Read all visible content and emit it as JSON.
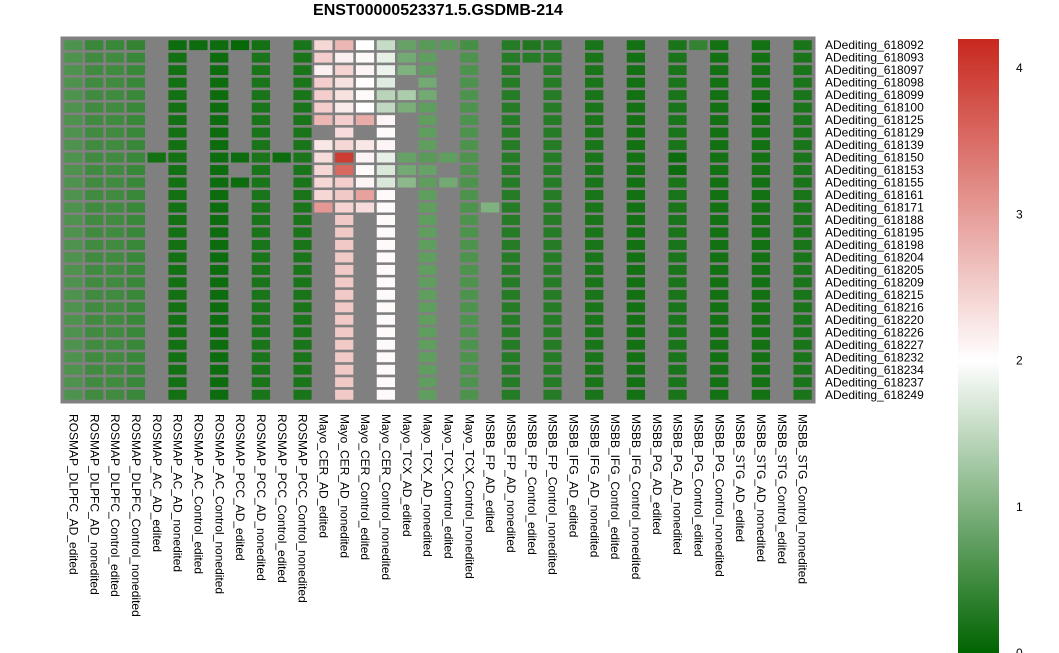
{
  "chart_data": {
    "type": "heatmap",
    "title": "ENST00000523371.5.GSDMB-214",
    "rows": [
      "ADediting_618092",
      "ADediting_618093",
      "ADediting_618097",
      "ADediting_618098",
      "ADediting_618099",
      "ADediting_618100",
      "ADediting_618125",
      "ADediting_618129",
      "ADediting_618139",
      "ADediting_618150",
      "ADediting_618153",
      "ADediting_618155",
      "ADediting_618161",
      "ADediting_618171",
      "ADediting_618188",
      "ADediting_618195",
      "ADediting_618198",
      "ADediting_618204",
      "ADediting_618205",
      "ADediting_618209",
      "ADediting_618215",
      "ADediting_618216",
      "ADediting_618220",
      "ADediting_618226",
      "ADediting_618227",
      "ADediting_618232",
      "ADediting_618234",
      "ADediting_618237",
      "ADediting_618249"
    ],
    "columns": [
      "ROSMAP_DLPFC_AD_edited",
      "ROSMAP_DLPFC_AD_nonedited",
      "ROSMAP_DLPFC_Control_edited",
      "ROSMAP_DLPFC_Control_nonedited",
      "ROSMAP_AC_AD_edited",
      "ROSMAP_AC_AD_nonedited",
      "ROSMAP_AC_Control_edited",
      "ROSMAP_AC_Control_nonedited",
      "ROSMAP_PCC_AD_edited",
      "ROSMAP_PCC_AD_nonedited",
      "ROSMAP_PCC_Control_edited",
      "ROSMAP_PCC_Control_nonedited",
      "Mayo_CER_AD_edited",
      "Mayo_CER_AD_nonedited",
      "Mayo_CER_Control_edited",
      "Mayo_CER_Control_nonedited",
      "Mayo_TCX_AD_edited",
      "Mayo_TCX_AD_nonedited",
      "Mayo_TCX_Control_edited",
      "Mayo_TCX_Control_nonedited",
      "MSBB_FP_AD_edited",
      "MSBB_FP_AD_nonedited",
      "MSBB_FP_Control_edited",
      "MSBB_FP_Control_nonedited",
      "MSBB_IFG_AD_edited",
      "MSBB_IFG_AD_nonedited",
      "MSBB_IFG_Control_edited",
      "MSBB_IFG_Control_nonedited",
      "MSBB_PG_AD_edited",
      "MSBB_PG_AD_nonedited",
      "MSBB_PG_Control_edited",
      "MSBB_PG_Control_nonedited",
      "MSBB_STG_AD_edited",
      "MSBB_STG_AD_nonedited",
      "MSBB_STG_Control_edited",
      "MSBB_STG_Control_nonedited"
    ],
    "column_base_values": [
      0.6,
      0.5,
      0.5,
      0.45,
      null,
      0.15,
      null,
      0.1,
      null,
      0.2,
      null,
      0.2,
      null,
      2.55,
      null,
      2.05,
      null,
      0.75,
      null,
      0.6,
      null,
      0.3,
      null,
      0.3,
      null,
      0.2,
      null,
      0.15,
      null,
      0.2,
      null,
      0.15,
      null,
      0.15,
      null,
      0.2
    ],
    "overrides": [
      [
        0,
        1,
        0.45
      ],
      [
        0,
        2,
        0.45
      ],
      [
        0,
        3,
        0.4
      ],
      [
        0,
        5,
        0.1
      ],
      [
        0,
        6,
        0.1
      ],
      [
        0,
        7,
        0.1
      ],
      [
        0,
        8,
        0.05
      ],
      [
        0,
        9,
        0.15
      ],
      [
        0,
        12,
        2.4
      ],
      [
        0,
        13,
        2.75
      ],
      [
        0,
        14,
        2.0
      ],
      [
        0,
        15,
        1.55
      ],
      [
        0,
        16,
        0.8
      ],
      [
        0,
        17,
        0.7
      ],
      [
        0,
        18,
        0.7
      ],
      [
        0,
        19,
        0.55
      ],
      [
        0,
        21,
        0.3
      ],
      [
        0,
        22,
        0.25
      ],
      [
        0,
        30,
        0.4
      ],
      [
        1,
        12,
        2.5
      ],
      [
        1,
        13,
        2.15
      ],
      [
        1,
        14,
        2.05
      ],
      [
        1,
        15,
        1.8
      ],
      [
        1,
        16,
        0.9
      ],
      [
        1,
        22,
        0.3
      ],
      [
        2,
        12,
        2.15
      ],
      [
        2,
        13,
        2.45
      ],
      [
        2,
        14,
        2.1
      ],
      [
        2,
        15,
        1.85
      ],
      [
        2,
        16,
        1.0
      ],
      [
        3,
        7,
        0.1
      ],
      [
        3,
        12,
        2.5
      ],
      [
        3,
        13,
        2.3
      ],
      [
        3,
        14,
        2.0
      ],
      [
        3,
        15,
        1.75
      ],
      [
        3,
        17,
        0.9
      ],
      [
        4,
        12,
        2.5
      ],
      [
        4,
        13,
        2.3
      ],
      [
        4,
        14,
        2.05
      ],
      [
        4,
        15,
        1.45
      ],
      [
        4,
        16,
        1.35
      ],
      [
        4,
        17,
        0.9
      ],
      [
        5,
        12,
        2.5
      ],
      [
        5,
        13,
        2.2
      ],
      [
        5,
        14,
        2.0
      ],
      [
        5,
        15,
        1.5
      ],
      [
        5,
        16,
        0.95
      ],
      [
        5,
        33,
        0.05
      ],
      [
        6,
        12,
        2.75
      ],
      [
        6,
        13,
        2.5
      ],
      [
        6,
        14,
        2.85
      ],
      [
        6,
        15,
        2.1
      ],
      [
        7,
        12,
        null
      ],
      [
        7,
        13,
        2.35
      ],
      [
        7,
        14,
        null
      ],
      [
        7,
        15,
        2.05
      ],
      [
        8,
        12,
        2.25
      ],
      [
        8,
        13,
        2.4
      ],
      [
        8,
        14,
        2.25
      ],
      [
        8,
        15,
        2.1
      ],
      [
        9,
        4,
        0.15
      ],
      [
        9,
        8,
        0.1
      ],
      [
        9,
        10,
        0.1
      ],
      [
        9,
        12,
        2.35
      ],
      [
        9,
        13,
        4.0
      ],
      [
        9,
        14,
        2.1
      ],
      [
        9,
        15,
        1.8
      ],
      [
        9,
        16,
        0.8
      ],
      [
        9,
        17,
        0.7
      ],
      [
        9,
        18,
        0.75
      ],
      [
        9,
        29,
        0.1
      ],
      [
        10,
        12,
        2.4
      ],
      [
        10,
        13,
        3.55
      ],
      [
        10,
        14,
        2.05
      ],
      [
        10,
        15,
        1.7
      ],
      [
        10,
        16,
        0.9
      ],
      [
        10,
        17,
        0.8
      ],
      [
        10,
        29,
        0.1
      ],
      [
        11,
        8,
        0.1
      ],
      [
        11,
        12,
        2.4
      ],
      [
        11,
        13,
        2.5
      ],
      [
        11,
        14,
        2.1
      ],
      [
        11,
        15,
        1.7
      ],
      [
        11,
        16,
        1.1
      ],
      [
        11,
        17,
        0.75
      ],
      [
        11,
        18,
        0.9
      ],
      [
        12,
        12,
        2.4
      ],
      [
        12,
        13,
        2.55
      ],
      [
        12,
        14,
        2.95
      ],
      [
        12,
        15,
        2.05
      ],
      [
        13,
        12,
        3.05
      ],
      [
        13,
        13,
        2.45
      ],
      [
        13,
        14,
        2.35
      ],
      [
        13,
        15,
        2.05
      ],
      [
        13,
        20,
        1.0
      ]
    ],
    "colorscale": [
      "#006400",
      "#ffffff",
      "#c8281e"
    ],
    "color_range": [
      0,
      4.2
    ],
    "colorbar_ticks": [
      0,
      1,
      2,
      3,
      4
    ],
    "missing_color": "#808080",
    "xlabel": "",
    "ylabel": ""
  }
}
